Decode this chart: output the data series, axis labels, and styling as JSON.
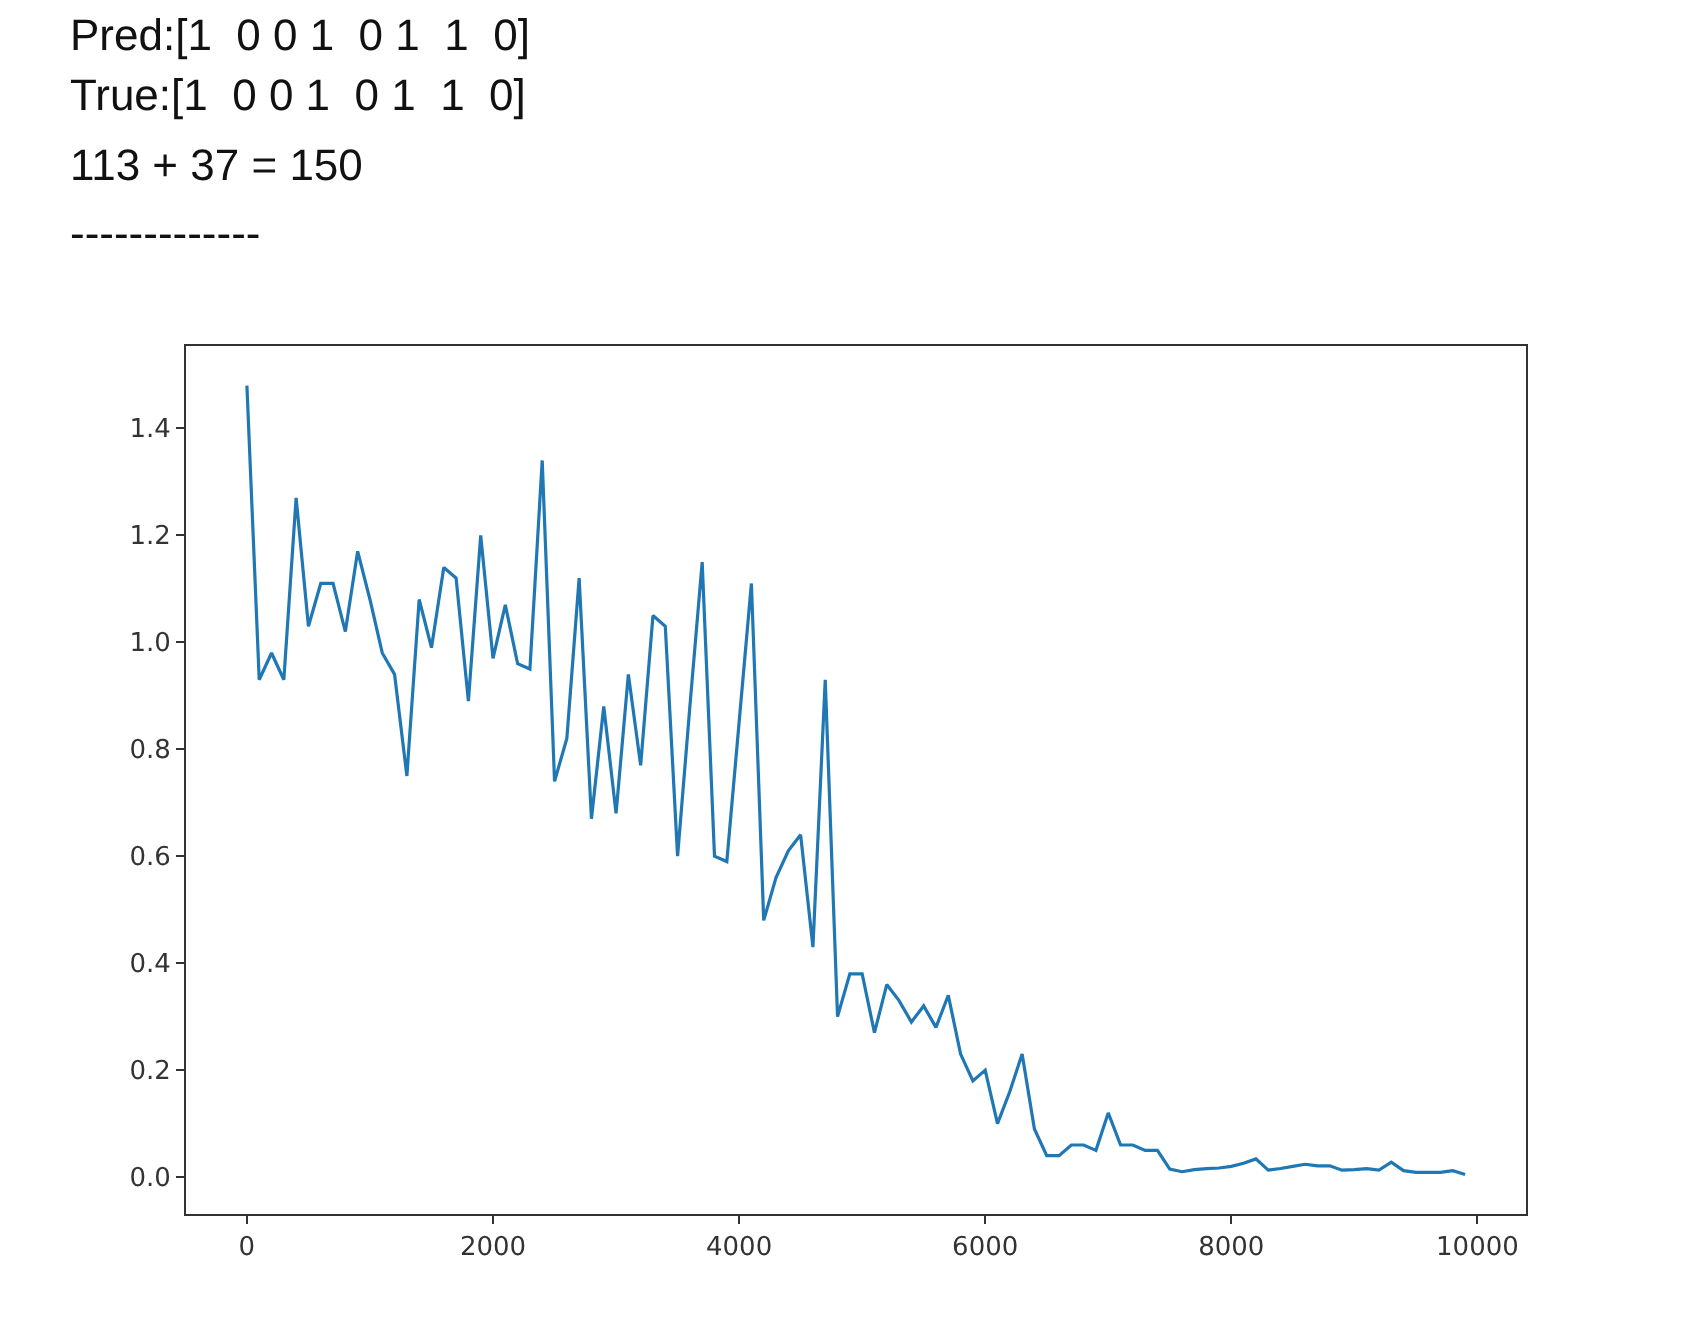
{
  "chart_data": {
    "type": "line",
    "annotations": [
      "Pred:[1  0 0 1  0 1  1  0]",
      "True:[1  0 0 1  0 1  1  0]",
      "113 + 37 = 150",
      "-------------"
    ],
    "x": [
      0,
      100,
      200,
      300,
      400,
      500,
      600,
      700,
      800,
      900,
      1000,
      1100,
      1200,
      1300,
      1400,
      1500,
      1600,
      1700,
      1800,
      1900,
      2000,
      2100,
      2200,
      2300,
      2400,
      2500,
      2600,
      2700,
      2800,
      2900,
      3000,
      3100,
      3200,
      3300,
      3400,
      3500,
      3600,
      3700,
      3800,
      3900,
      4000,
      4100,
      4200,
      4300,
      4400,
      4500,
      4600,
      4700,
      4800,
      4900,
      5000,
      5100,
      5200,
      5300,
      5400,
      5500,
      5600,
      5700,
      5800,
      5900,
      6000,
      6100,
      6200,
      6300,
      6400,
      6500,
      6600,
      6700,
      6800,
      6900,
      7000,
      7100,
      7200,
      7300,
      7400,
      7500,
      7600,
      7700,
      7800,
      7900,
      8000,
      8100,
      8200,
      8300,
      8400,
      8500,
      8600,
      8700,
      8800,
      8900,
      9000,
      9100,
      9200,
      9300,
      9400,
      9500,
      9600,
      9700,
      9800,
      9900
    ],
    "series": [
      {
        "color": "#1f77b4",
        "values": [
          1.48,
          0.93,
          0.98,
          0.93,
          1.27,
          1.03,
          1.11,
          1.11,
          1.02,
          1.17,
          1.08,
          0.98,
          0.94,
          0.75,
          1.08,
          0.99,
          1.14,
          1.12,
          0.89,
          1.2,
          0.97,
          1.07,
          0.96,
          0.95,
          1.34,
          0.74,
          0.82,
          1.12,
          0.67,
          0.88,
          0.68,
          0.94,
          0.77,
          1.05,
          1.03,
          0.6,
          0.88,
          1.15,
          0.6,
          0.59,
          0.85,
          1.11,
          0.48,
          0.56,
          0.61,
          0.64,
          0.43,
          0.93,
          0.3,
          0.38,
          0.38,
          0.27,
          0.36,
          0.33,
          0.29,
          0.32,
          0.28,
          0.34,
          0.23,
          0.18,
          0.2,
          0.1,
          0.16,
          0.23,
          0.09,
          0.04,
          0.04,
          0.06,
          0.06,
          0.05,
          0.12,
          0.06,
          0.06,
          0.05,
          0.05,
          0.015,
          0.01,
          0.014,
          0.016,
          0.017,
          0.02,
          0.026,
          0.034,
          0.013,
          0.016,
          0.02,
          0.024,
          0.021,
          0.021,
          0.013,
          0.014,
          0.016,
          0.013,
          0.028,
          0.012,
          0.009,
          0.009,
          0.009,
          0.012,
          0.005
        ]
      }
    ],
    "xlim": [
      -495,
      10395
    ],
    "ylim": [
      -0.069,
      1.554
    ],
    "xticks": [
      0,
      2000,
      4000,
      6000,
      8000,
      10000
    ],
    "yticks": [
      {
        "value": 0,
        "label": "0.0"
      },
      {
        "value": 0.2,
        "label": "0.2"
      },
      {
        "value": 0.4,
        "label": "0.4"
      },
      {
        "value": 0.6,
        "label": "0.6"
      },
      {
        "value": 0.8,
        "label": "0.8"
      },
      {
        "value": 1.0,
        "label": "1.0"
      },
      {
        "value": 1.2,
        "label": "1.2"
      },
      {
        "value": 1.4,
        "label": "1.4"
      }
    ],
    "legend": false
  }
}
